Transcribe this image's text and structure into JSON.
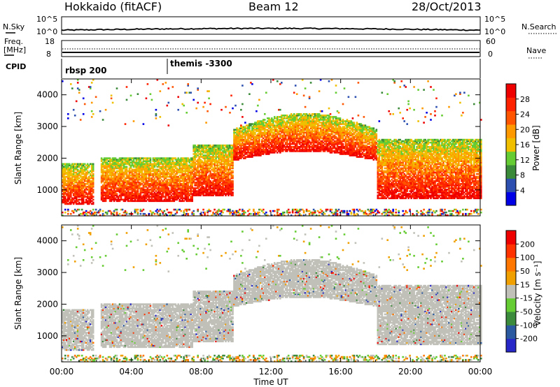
{
  "header": {
    "radar": "Hokkaido (fitACF)",
    "beam": "Beam 12",
    "date": "28/Oct/2013"
  },
  "strip": {
    "nsky_label": "N.Sky",
    "nsky_ticks": [
      "10^5",
      "10^0"
    ],
    "nsearch_label": "N.Search",
    "nsearch_ticks": [
      "10^5",
      "10^0"
    ],
    "freq_label_line1": "Freq.",
    "freq_label_line2": "[MHz]",
    "freq_ticks": [
      "18",
      "8"
    ],
    "nave_label": "Nave",
    "nave_ticks": [
      "60",
      "0"
    ],
    "cpid_label": "CPID",
    "cpid_segments": [
      {
        "name": "rbsp 200",
        "start_hour": 0
      },
      {
        "name": "themis -3300",
        "start_hour": 6
      }
    ]
  },
  "colors": {
    "power_scale": [
      "#0000e6",
      "#2c4fb0",
      "#3a8a3a",
      "#66cc33",
      "#f0c000",
      "#ff9900",
      "#ff5500",
      "#ff2200",
      "#ee0000"
    ],
    "velocity_scale": [
      "#2727c8",
      "#2c5aa0",
      "#3c8a3c",
      "#66cc33",
      "#c0c0b8",
      "#f0a000",
      "#ff7700",
      "#ff3300",
      "#ee0000"
    ],
    "ground_scatter": "#c0c0b8"
  },
  "chart_data": [
    {
      "type": "heatmap",
      "panel": "power",
      "xlabel": "Time UT",
      "ylabel": "Slant Range [km]",
      "x_range_hours": [
        0,
        24
      ],
      "ylim": [
        180,
        4500
      ],
      "y_ticks": [
        "1000",
        "2000",
        "3000",
        "4000"
      ],
      "x_ticks": [
        "00:00",
        "04:00",
        "08:00",
        "12:00",
        "16:00",
        "20:00",
        "00:00"
      ],
      "colorbar_label": "Power [dB]",
      "colorbar_ticks": [
        "4",
        "8",
        "12",
        "16",
        "20",
        "24",
        "28"
      ],
      "scatter_bands_km": [
        {
          "start_h": 0.0,
          "end_h": 1.8,
          "low": 500,
          "high": 1800
        },
        {
          "start_h": 2.2,
          "end_h": 7.5,
          "low": 600,
          "high": 2000
        },
        {
          "start_h": 7.5,
          "end_h": 9.8,
          "low": 800,
          "high": 2400
        },
        {
          "start_h": 9.8,
          "end_h": 12.5,
          "low": 1800,
          "high": 3300
        },
        {
          "start_h": 12.5,
          "end_h": 18.0,
          "low": 1800,
          "high": 3300
        },
        {
          "start_h": 18.0,
          "end_h": 24.0,
          "low": 700,
          "high": 2600
        }
      ]
    },
    {
      "type": "heatmap",
      "panel": "velocity",
      "xlabel": "Time UT",
      "ylabel": "Slant Range [km]",
      "x_range_hours": [
        0,
        24
      ],
      "ylim": [
        180,
        4500
      ],
      "y_ticks": [
        "1000",
        "2000",
        "3000",
        "4000"
      ],
      "x_ticks": [
        "00:00",
        "04:00",
        "08:00",
        "12:00",
        "16:00",
        "20:00",
        "00:00"
      ],
      "colorbar_label": "Velocity [m s⁻¹]",
      "colorbar_ticks": [
        "-200",
        "-100",
        "-50",
        "-15",
        "15",
        "50",
        "100",
        "200"
      ]
    }
  ]
}
